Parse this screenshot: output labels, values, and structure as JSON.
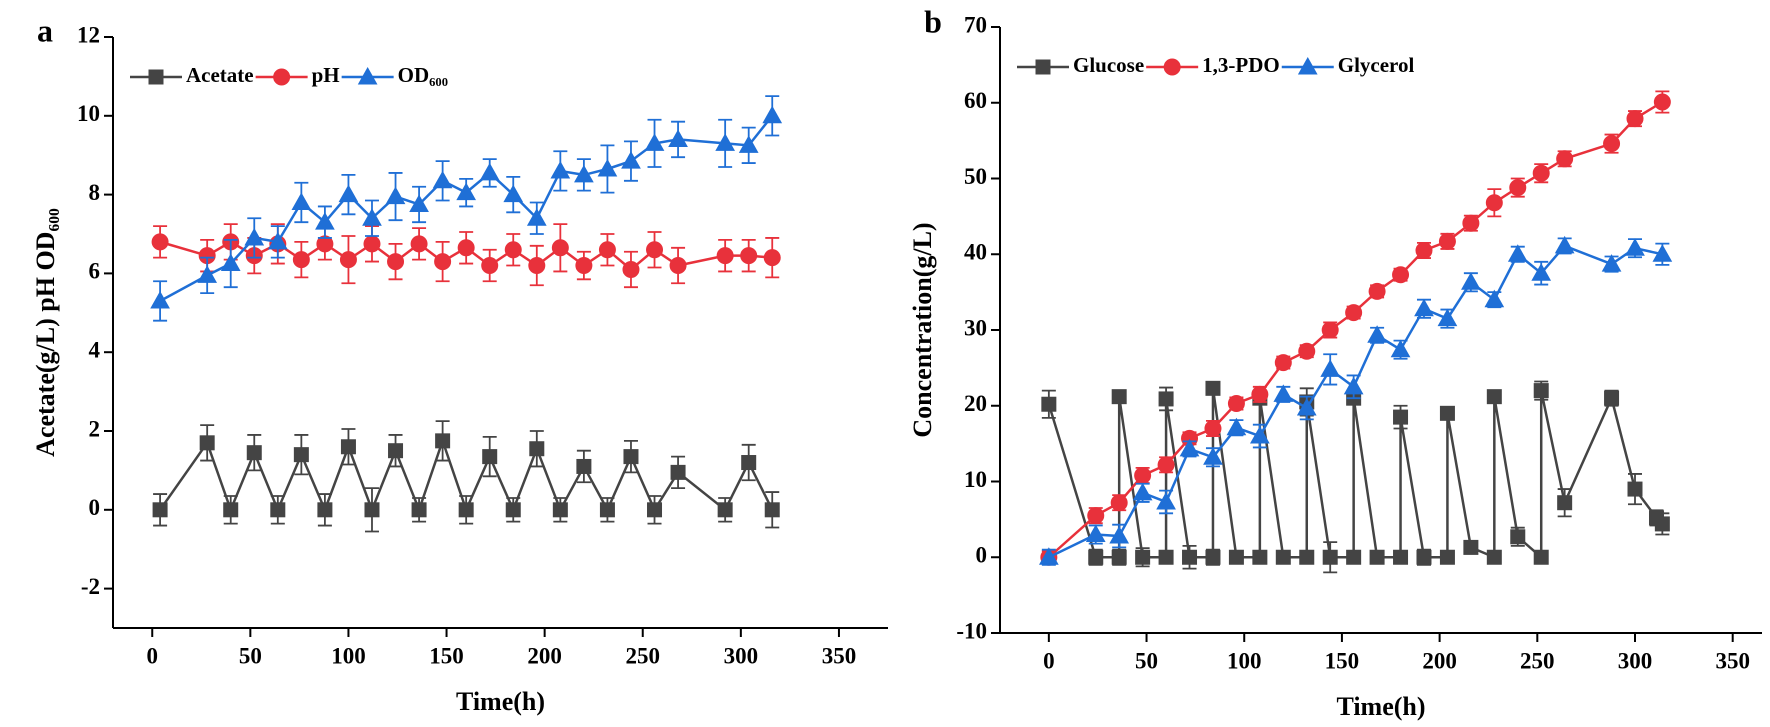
{
  "chart_data": [
    {
      "type": "line",
      "panel_label": "a",
      "x_label": "Time(h)",
      "y_label": "Acetate(g/L)  pH  OD₆₀₀",
      "xlim": [
        -20,
        375
      ],
      "ylim": [
        -3,
        12
      ],
      "xticks": [
        0,
        50,
        100,
        150,
        200,
        250,
        300,
        350
      ],
      "yticks": [
        -2,
        0,
        2,
        4,
        6,
        8,
        10,
        12
      ],
      "legend_loc": "upper left",
      "x": [
        4,
        28,
        40,
        52,
        64,
        76,
        88,
        100,
        112,
        124,
        136,
        148,
        160,
        172,
        184,
        196,
        208,
        220,
        232,
        244,
        256,
        268,
        292,
        304,
        316
      ],
      "series": [
        {
          "name": "Acetate",
          "color": "#444444",
          "marker": "square",
          "values": [
            0,
            1.7,
            0,
            1.45,
            0,
            1.4,
            0,
            1.6,
            0,
            1.5,
            0,
            1.75,
            0,
            1.35,
            0,
            1.55,
            0,
            1.1,
            0,
            1.35,
            0,
            0.95,
            0,
            1.2,
            0
          ],
          "errors": [
            0.4,
            0.45,
            0.35,
            0.45,
            0.35,
            0.5,
            0.4,
            0.45,
            0.55,
            0.4,
            0.3,
            0.5,
            0.35,
            0.5,
            0.3,
            0.45,
            0.3,
            0.4,
            0.3,
            0.4,
            0.35,
            0.4,
            0.3,
            0.45,
            0.45
          ]
        },
        {
          "name": "pH",
          "color": "#e8313b",
          "marker": "circle",
          "values": [
            6.8,
            6.45,
            6.8,
            6.45,
            6.75,
            6.35,
            6.75,
            6.35,
            6.75,
            6.3,
            6.75,
            6.3,
            6.65,
            6.2,
            6.6,
            6.2,
            6.65,
            6.2,
            6.6,
            6.1,
            6.6,
            6.2,
            6.45,
            6.45,
            6.4
          ],
          "errors": [
            0.4,
            0.4,
            0.45,
            0.45,
            0.5,
            0.45,
            0.4,
            0.6,
            0.45,
            0.45,
            0.4,
            0.5,
            0.4,
            0.4,
            0.4,
            0.5,
            0.6,
            0.35,
            0.4,
            0.45,
            0.45,
            0.45,
            0.4,
            0.4,
            0.5
          ]
        },
        {
          "name": "OD₆₀₀",
          "color": "#1f6fd6",
          "marker": "triangle",
          "values": [
            5.3,
            5.95,
            6.25,
            6.9,
            6.8,
            7.8,
            7.3,
            8.0,
            7.4,
            7.95,
            7.75,
            8.35,
            8.05,
            8.55,
            8.0,
            7.4,
            8.6,
            8.5,
            8.65,
            8.85,
            9.3,
            9.4,
            9.3,
            9.25,
            10.0
          ],
          "errors": [
            0.5,
            0.45,
            0.6,
            0.5,
            0.4,
            0.5,
            0.4,
            0.5,
            0.45,
            0.6,
            0.45,
            0.5,
            0.35,
            0.35,
            0.45,
            0.4,
            0.5,
            0.4,
            0.6,
            0.5,
            0.6,
            0.45,
            0.6,
            0.45,
            0.5
          ]
        }
      ]
    },
    {
      "type": "line",
      "panel_label": "b",
      "x_label": "Time(h)",
      "y_label": "Concentration(g/L)",
      "xlim": [
        -25,
        365
      ],
      "ylim": [
        -10,
        70
      ],
      "xticks": [
        0,
        50,
        100,
        150,
        200,
        250,
        300,
        350
      ],
      "yticks": [
        -10,
        0,
        10,
        20,
        30,
        40,
        50,
        60,
        70
      ],
      "legend_loc": "upper left",
      "series": [
        {
          "name": "Glucose",
          "color": "#444444",
          "marker": "square",
          "x": [
            0,
            24,
            36,
            36,
            48,
            60,
            60,
            72,
            84,
            84,
            96,
            108,
            108,
            120,
            132,
            132,
            144,
            156,
            156,
            168,
            180,
            180,
            192,
            204,
            204,
            216,
            228,
            228,
            240,
            252,
            252,
            264,
            288,
            300,
            311,
            314
          ],
          "values": [
            20.2,
            0,
            0,
            21.2,
            0,
            0,
            20.9,
            0,
            0,
            22.3,
            0,
            0,
            21,
            0,
            0,
            20.5,
            0,
            0,
            21,
            0,
            0,
            18.5,
            0,
            0,
            19,
            1.3,
            0,
            21.2,
            2.7,
            0,
            22,
            7.2,
            21,
            9,
            5.2,
            4.4
          ],
          "errors": [
            1.8,
            1,
            1,
            0.8,
            1.2,
            0.8,
            1.5,
            1.5,
            1,
            0.8,
            0.8,
            0.6,
            0.8,
            0.6,
            0.6,
            1.8,
            2,
            0.6,
            0.8,
            0.6,
            0.6,
            1.5,
            1,
            0.8,
            0.8,
            0.6,
            0.4,
            0.6,
            1.2,
            0.6,
            1.2,
            1.8,
            1,
            2,
            1,
            1.4
          ]
        },
        {
          "name": "1,3-PDO",
          "color": "#e8313b",
          "marker": "circle",
          "x": [
            0,
            24,
            36,
            48,
            60,
            72,
            84,
            96,
            108,
            120,
            132,
            144,
            156,
            168,
            180,
            192,
            204,
            216,
            228,
            240,
            252,
            264,
            288,
            300,
            314
          ],
          "values": [
            0,
            5.5,
            7.2,
            10.8,
            12.2,
            15.7,
            17,
            20.3,
            21.5,
            25.7,
            27.2,
            30,
            32.3,
            35.1,
            37.3,
            40.5,
            41.7,
            44.1,
            46.8,
            48.8,
            50.7,
            52.6,
            54.6,
            57.9,
            60.1
          ],
          "errors": [
            0.8,
            1,
            1,
            1,
            1,
            0.8,
            1,
            0.8,
            1,
            0.8,
            0.8,
            1,
            0.8,
            0.8,
            0.8,
            1,
            1,
            1,
            1.8,
            1.2,
            1.2,
            1,
            1.2,
            1,
            1.4
          ]
        },
        {
          "name": "Glycerol",
          "color": "#1f6fd6",
          "marker": "triangle",
          "x": [
            0,
            24,
            36,
            48,
            60,
            72,
            84,
            96,
            108,
            120,
            132,
            144,
            156,
            168,
            180,
            192,
            204,
            216,
            228,
            240,
            252,
            264,
            288,
            300,
            314
          ],
          "values": [
            0,
            3,
            2.8,
            8.5,
            7.3,
            14.3,
            13.2,
            17.1,
            16,
            21.5,
            19.7,
            24.8,
            22.5,
            29.3,
            27.4,
            32.8,
            31.5,
            36.3,
            34,
            40,
            37.5,
            41.1,
            38.7,
            40.8,
            40
          ],
          "errors": [
            1,
            1.2,
            1.5,
            1.2,
            1.5,
            1,
            1.2,
            1,
            1.5,
            1,
            1.5,
            2,
            1.5,
            1,
            1.2,
            1.2,
            1.2,
            1.2,
            1,
            1,
            1.5,
            1,
            1,
            1.2,
            1.4
          ]
        }
      ]
    }
  ]
}
